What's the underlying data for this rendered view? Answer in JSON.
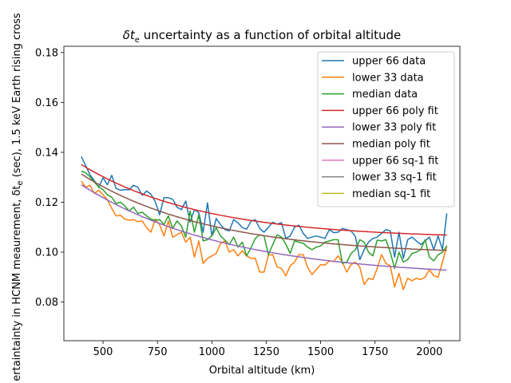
{
  "chart_data": {
    "type": "line",
    "title": "δte uncertainty as a function of orbital altitude",
    "title_main": "δt",
    "title_sub": "e",
    "title_rest": " uncertainty as a function of orbital altitude",
    "xlabel": "Orbital altitude (km)",
    "ylabel": "ertaintainty in HCNM meaurement, δte (sec), 1.5 keV Earth rising cross",
    "ylabel_pre": "ertaintainty in HCNM meaurement, δt",
    "ylabel_sub": "e",
    "ylabel_post": " (sec), 1.5 keV Earth rising cross",
    "xlim": [
      320,
      2140
    ],
    "ylim": [
      0.0645,
      0.1825
    ],
    "xticks": [
      500,
      750,
      1000,
      1250,
      1500,
      1750,
      2000
    ],
    "yticks": [
      0.08,
      0.1,
      0.12,
      0.14,
      0.16,
      0.18
    ],
    "ytick_labels": [
      "0.08",
      "0.10",
      "0.12",
      "0.14",
      "0.16",
      "0.18"
    ],
    "grid": false,
    "legend_position": "top-right",
    "x": [
      400,
      420,
      440,
      460,
      480,
      500,
      520,
      540,
      560,
      580,
      600,
      620,
      640,
      660,
      680,
      700,
      720,
      740,
      760,
      780,
      800,
      820,
      840,
      860,
      880,
      900,
      920,
      940,
      960,
      980,
      1000,
      1020,
      1040,
      1060,
      1080,
      1100,
      1120,
      1140,
      1160,
      1180,
      1200,
      1220,
      1240,
      1260,
      1280,
      1300,
      1320,
      1340,
      1360,
      1380,
      1400,
      1420,
      1440,
      1460,
      1480,
      1500,
      1520,
      1540,
      1560,
      1580,
      1600,
      1620,
      1640,
      1660,
      1680,
      1700,
      1720,
      1740,
      1760,
      1780,
      1800,
      1820,
      1840,
      1860,
      1880,
      1900,
      1920,
      1940,
      1960,
      1980,
      2000,
      2020,
      2040,
      2060,
      2080
    ],
    "series": [
      {
        "name": "upper 66 data",
        "color": "#1f77b4",
        "values": [
          0.1383,
          0.1347,
          0.131,
          0.1286,
          0.126,
          0.1298,
          0.127,
          0.1308,
          0.1255,
          0.1248,
          0.125,
          0.125,
          0.1268,
          0.126,
          0.1228,
          0.1245,
          0.1232,
          0.1202,
          0.115,
          0.1218,
          0.1218,
          0.1212,
          0.118,
          0.117,
          0.1205,
          0.112,
          0.117,
          0.1158,
          0.108,
          0.1198,
          0.1065,
          0.1135,
          0.111,
          0.109,
          0.1085,
          0.113,
          0.1118,
          0.1098,
          0.1092,
          0.1124,
          0.113,
          0.1095,
          0.108,
          0.11,
          0.112,
          0.1112,
          0.1118,
          0.1055,
          0.1065,
          0.11,
          0.1108,
          0.1075,
          0.1055,
          0.106,
          0.1065,
          0.106,
          0.1055,
          0.109,
          0.1078,
          0.108,
          0.1095,
          0.109,
          0.1085,
          0.1062,
          0.097,
          0.101,
          0.104,
          0.1055,
          0.106,
          0.1075,
          0.109,
          0.1085,
          0.098,
          0.108,
          0.0975,
          0.105,
          0.106,
          0.1045,
          0.103,
          0.1045,
          0.106,
          0.101,
          0.1065,
          0.101,
          0.1155
        ]
      },
      {
        "name": "lower 33 data",
        "color": "#ff7f0e",
        "values": [
          0.1285,
          0.126,
          0.1268,
          0.1235,
          0.1248,
          0.123,
          0.121,
          0.1175,
          0.1145,
          0.1148,
          0.1132,
          0.1128,
          0.113,
          0.1122,
          0.1125,
          0.1098,
          0.108,
          0.1132,
          0.111,
          0.1065,
          0.1125,
          0.106,
          0.107,
          0.108,
          0.104,
          0.106,
          0.098,
          0.1045,
          0.0955,
          0.0975,
          0.0985,
          0.0995,
          0.1035,
          0.1045,
          0.1,
          0.101,
          0.0985,
          0.1005,
          0.0985,
          0.0975,
          0.0975,
          0.092,
          0.092,
          0.0988,
          0.099,
          0.094,
          0.0935,
          0.0905,
          0.0945,
          0.096,
          0.099,
          0.099,
          0.094,
          0.091,
          0.093,
          0.095,
          0.0948,
          0.0965,
          0.0962,
          0.0985,
          0.096,
          0.092,
          0.095,
          0.096,
          0.094,
          0.087,
          0.0895,
          0.089,
          0.0935,
          0.099,
          0.0955,
          0.0945,
          0.086,
          0.0915,
          0.085,
          0.0895,
          0.0885,
          0.0895,
          0.089,
          0.09,
          0.093,
          0.0905,
          0.09,
          0.096,
          0.1025
        ]
      },
      {
        "name": "median data",
        "color": "#2ca02c",
        "values": [
          0.1325,
          0.1318,
          0.1302,
          0.128,
          0.1262,
          0.125,
          0.123,
          0.122,
          0.1195,
          0.12,
          0.1185,
          0.1165,
          0.118,
          0.1155,
          0.116,
          0.1145,
          0.1132,
          0.1128,
          0.113,
          0.111,
          0.1145,
          0.1095,
          0.1125,
          0.1105,
          0.106,
          0.1165,
          0.108,
          0.115,
          0.1045,
          0.105,
          0.1065,
          0.1098,
          0.1065,
          0.1048,
          0.103,
          0.106,
          0.102,
          0.104,
          0.0985,
          0.1018,
          0.1055,
          0.107,
          0.1065,
          0.099,
          0.103,
          0.107,
          0.106,
          0.1032,
          0.0995,
          0.1045,
          0.104,
          0.1035,
          0.102,
          0.101,
          0.102,
          0.1025,
          0.104,
          0.1045,
          0.105,
          0.105,
          0.0955,
          0.096,
          0.0995,
          0.101,
          0.105,
          0.104,
          0.1,
          0.0985,
          0.1048,
          0.1045,
          0.105,
          0.1,
          0.0935,
          0.1,
          0.096,
          0.097,
          0.0995,
          0.1,
          0.101,
          0.105,
          0.098,
          0.0965,
          0.099,
          0.1,
          0.1025
        ]
      },
      {
        "name": "upper 66 poly fit",
        "color": "#d62728",
        "fit": {
          "kind": "exp",
          "a": 0.1054,
          "b": 0.0297,
          "k": 0.0018
        }
      },
      {
        "name": "lower 33 poly fit",
        "color": "#9467bd",
        "fit": {
          "kind": "exp",
          "a": 0.0898,
          "b": 0.0372,
          "k": 0.0015
        }
      },
      {
        "name": "median poly fit",
        "color": "#8c564b",
        "fit": {
          "kind": "exp",
          "a": 0.0988,
          "b": 0.0325,
          "k": 0.0017
        }
      },
      {
        "name": "upper 66  sq-1 fit",
        "color": "#e377c2",
        "fit": {
          "kind": "sq",
          "c": 0.0598,
          "s": 18.86
        }
      },
      {
        "name": "lower 33 sq-1 fit",
        "color": "#7f7f7f",
        "fit": {
          "kind": "sq",
          "c": 0.0556,
          "s": 16.62
        }
      },
      {
        "name": "median sq-1 fit",
        "color": "#bcbd22",
        "fit": {
          "kind": "sq",
          "c": 0.0563,
          "s": 17.9
        }
      }
    ]
  }
}
